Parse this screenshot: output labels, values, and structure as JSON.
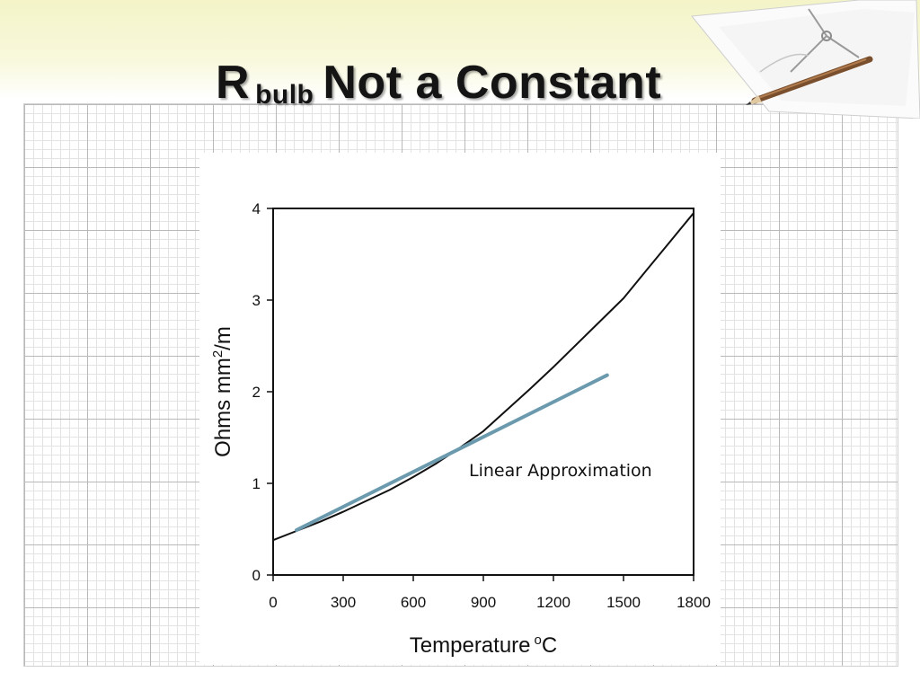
{
  "slide": {
    "title_main": "R",
    "title_sub": "bulb",
    "title_rest": "Not a Constant"
  },
  "decoration": {
    "icon": "paper-and-pencil",
    "band_color": "#f4f4c8"
  },
  "chart_data": {
    "type": "line",
    "title": "",
    "xlabel": "Temperature",
    "xlabel_unit_sup": "o",
    "xlabel_unit": "C",
    "ylabel": "Ohms mm",
    "ylabel_sup": "2",
    "ylabel_unit": "/m",
    "xlim": [
      0,
      1800
    ],
    "ylim": [
      0,
      4
    ],
    "x_ticks": [
      0,
      300,
      600,
      900,
      1200,
      1500,
      1800
    ],
    "y_ticks": [
      0,
      1,
      2,
      3,
      4
    ],
    "grid": false,
    "series": [
      {
        "color": "#111111",
        "x": [
          0,
          100,
          200,
          300,
          400,
          500,
          600,
          700,
          800,
          900,
          1000,
          1100,
          1200,
          1300,
          1400,
          1500,
          1600,
          1700,
          1800
        ],
        "y": [
          0.38,
          0.48,
          0.58,
          0.69,
          0.81,
          0.93,
          1.07,
          1.22,
          1.39,
          1.57,
          1.8,
          2.03,
          2.27,
          2.52,
          2.77,
          3.02,
          3.33,
          3.64,
          3.95
        ]
      },
      {
        "color": "#6b9aae",
        "x": [
          100,
          1430
        ],
        "y": [
          0.49,
          2.18
        ]
      }
    ],
    "annotations": [
      {
        "text": "Linear Approximation",
        "x": 1000,
        "y": 1.1
      }
    ]
  }
}
